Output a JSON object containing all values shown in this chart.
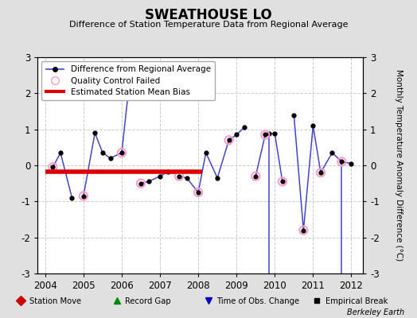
{
  "title": "SWEATHOUSE LO",
  "subtitle": "Difference of Station Temperature Data from Regional Average",
  "ylabel": "Monthly Temperature Anomaly Difference (°C)",
  "credit": "Berkeley Earth",
  "ylim": [
    -3,
    3
  ],
  "xlim": [
    2003.8,
    2012.3
  ],
  "xticks": [
    2004,
    2005,
    2006,
    2007,
    2008,
    2009,
    2010,
    2011,
    2012
  ],
  "yticks": [
    -3,
    -2,
    -1,
    0,
    1,
    2,
    3
  ],
  "background_color": "#e0e0e0",
  "plot_bg_color": "#ffffff",
  "grid_color": "#cccccc",
  "line_color": "#4444cc",
  "marker_color": "#000000",
  "qc_color": "#ff99cc",
  "bias_color": "#dd0000",
  "bias_x_start": 2004.0,
  "bias_x_end": 2008.1,
  "bias_y": -0.18,
  "bias_lw": 4.0,
  "segments": [
    {
      "x": [
        2004.2,
        2004.4,
        2004.7
      ],
      "y": [
        -0.05,
        0.35,
        -0.9
      ]
    },
    {
      "x": [
        2005.0,
        2005.3,
        2005.5,
        2005.7,
        2006.0,
        2006.2
      ],
      "y": [
        -0.85,
        0.9,
        0.35,
        0.2,
        0.35,
        2.3
      ]
    },
    {
      "x": [
        2006.5,
        2006.7,
        2007.0,
        2007.2
      ],
      "y": [
        -0.5,
        -0.45,
        -0.3,
        -0.18
      ]
    },
    {
      "x": [
        2007.5,
        2007.7,
        2008.0,
        2008.2,
        2008.5,
        2008.8,
        2009.0,
        2009.2
      ],
      "y": [
        -0.3,
        -0.35,
        -0.75,
        0.35,
        -0.35,
        0.7,
        0.85,
        1.05
      ]
    },
    {
      "x": [
        2009.5,
        2009.75,
        2009.85,
        2010.0,
        2010.2
      ],
      "y": [
        -0.3,
        0.85,
        0.88,
        0.88,
        -0.45
      ]
    },
    {
      "x": [
        2010.5,
        2010.75,
        2011.0,
        2011.2,
        2011.5,
        2011.75,
        2012.0
      ],
      "y": [
        1.4,
        -1.8,
        1.1,
        -0.2,
        0.35,
        0.1,
        0.05
      ]
    }
  ],
  "drops": [
    {
      "x": 2009.85,
      "y_top": 0.88,
      "y_bot": -3.0
    },
    {
      "x": 2011.75,
      "y_top": 0.1,
      "y_bot": -3.0
    }
  ],
  "qc_x": [
    2004.2,
    2005.0,
    2006.0,
    2006.5,
    2007.5,
    2008.0,
    2008.8,
    2009.5,
    2009.75,
    2010.2,
    2010.75,
    2011.2,
    2011.75
  ],
  "qc_y": [
    -0.05,
    -0.85,
    0.35,
    -0.5,
    -0.3,
    -0.75,
    0.7,
    -0.3,
    0.85,
    -0.45,
    -1.8,
    -0.2,
    0.1
  ]
}
